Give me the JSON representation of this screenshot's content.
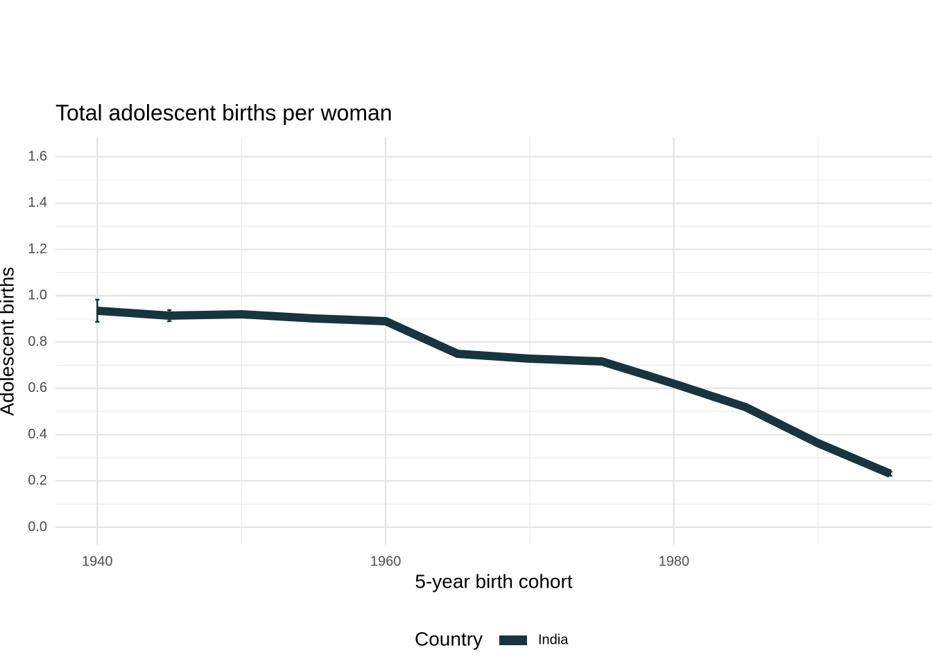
{
  "chart_data": {
    "type": "line",
    "title": "Total adolescent births per woman",
    "xlabel": "5-year birth cohort",
    "ylabel": "Adolescent births",
    "legend_title": "Country",
    "x": [
      1940,
      1945,
      1950,
      1955,
      1960,
      1965,
      1970,
      1975,
      1980,
      1985,
      1990,
      1995
    ],
    "series": [
      {
        "name": "India",
        "color": "#17343f",
        "values": [
          0.935,
          0.914,
          0.92,
          0.902,
          0.89,
          0.749,
          0.728,
          0.716,
          0.62,
          0.518,
          0.363,
          0.231
        ],
        "errors": [
          0.048,
          0.024,
          0.01,
          0.005,
          0.005,
          0.005,
          0.005,
          0.005,
          0.005,
          0.005,
          0.005,
          0.008
        ]
      }
    ],
    "xlim": [
      1937.1,
      1997.9
    ],
    "xticks": [
      1940,
      1960,
      1980
    ],
    "xminor": [
      1950,
      1970,
      1990
    ],
    "ylim": [
      -0.075,
      1.684
    ],
    "yticks": [
      {
        "value": 0,
        "label": "0.0"
      },
      0.2,
      0.4,
      0.6,
      0.8,
      {
        "value": 1,
        "label": "1.0"
      },
      1.2,
      1.4,
      1.6
    ],
    "yminor": [
      0.1,
      0.3,
      0.5,
      0.7,
      0.9,
      1.1,
      1.3,
      1.5
    ],
    "grid": true,
    "legend": "bottom"
  }
}
